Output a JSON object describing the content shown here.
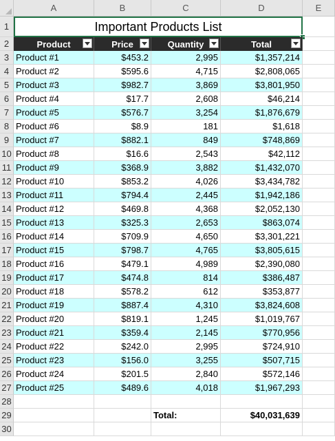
{
  "columns": [
    "A",
    "B",
    "C",
    "D",
    "E"
  ],
  "title": "Important Products List",
  "headers": [
    "Product",
    "Price",
    "Quantity",
    "Total"
  ],
  "rows": [
    [
      "Product #1",
      "$453.2",
      "2,995",
      "$1,357,214"
    ],
    [
      "Product #2",
      "$595.6",
      "4,715",
      "$2,808,065"
    ],
    [
      "Product #3",
      "$982.7",
      "3,869",
      "$3,801,950"
    ],
    [
      "Product #4",
      "$17.7",
      "2,608",
      "$46,214"
    ],
    [
      "Product #5",
      "$576.7",
      "3,254",
      "$1,876,679"
    ],
    [
      "Product #6",
      "$8.9",
      "181",
      "$1,618"
    ],
    [
      "Product #7",
      "$882.1",
      "849",
      "$748,869"
    ],
    [
      "Product #8",
      "$16.6",
      "2,543",
      "$42,112"
    ],
    [
      "Product #9",
      "$368.9",
      "3,882",
      "$1,432,070"
    ],
    [
      "Product #10",
      "$853.2",
      "4,026",
      "$3,434,782"
    ],
    [
      "Product #11",
      "$794.4",
      "2,445",
      "$1,942,186"
    ],
    [
      "Product #12",
      "$469.8",
      "4,368",
      "$2,052,130"
    ],
    [
      "Product #13",
      "$325.3",
      "2,653",
      "$863,074"
    ],
    [
      "Product #14",
      "$709.9",
      "4,650",
      "$3,301,221"
    ],
    [
      "Product #15",
      "$798.7",
      "4,765",
      "$3,805,615"
    ],
    [
      "Product #16",
      "$479.1",
      "4,989",
      "$2,390,080"
    ],
    [
      "Product #17",
      "$474.8",
      "814",
      "$386,487"
    ],
    [
      "Product #18",
      "$578.2",
      "612",
      "$353,877"
    ],
    [
      "Product #19",
      "$887.4",
      "4,310",
      "$3,824,608"
    ],
    [
      "Product #20",
      "$819.1",
      "1,245",
      "$1,019,767"
    ],
    [
      "Product #21",
      "$359.4",
      "2,145",
      "$770,956"
    ],
    [
      "Product #22",
      "$242.0",
      "2,995",
      "$724,910"
    ],
    [
      "Product #23",
      "$156.0",
      "3,255",
      "$507,715"
    ],
    [
      "Product #24",
      "$201.5",
      "2,840",
      "$572,146"
    ],
    [
      "Product #25",
      "$489.6",
      "4,018",
      "$1,967,293"
    ]
  ],
  "row_numbers": [
    "1",
    "2",
    "3",
    "4",
    "5",
    "6",
    "7",
    "8",
    "9",
    "10",
    "11",
    "12",
    "13",
    "14",
    "15",
    "16",
    "17",
    "18",
    "19",
    "20",
    "21",
    "22",
    "23",
    "24",
    "25",
    "26",
    "27",
    "28",
    "29",
    "30"
  ],
  "summary": {
    "label": "Total:",
    "value": "$40,031,639"
  },
  "colors": {
    "band": "#ccffff",
    "header_bg": "#2b2b2b",
    "selection": "#217346"
  }
}
